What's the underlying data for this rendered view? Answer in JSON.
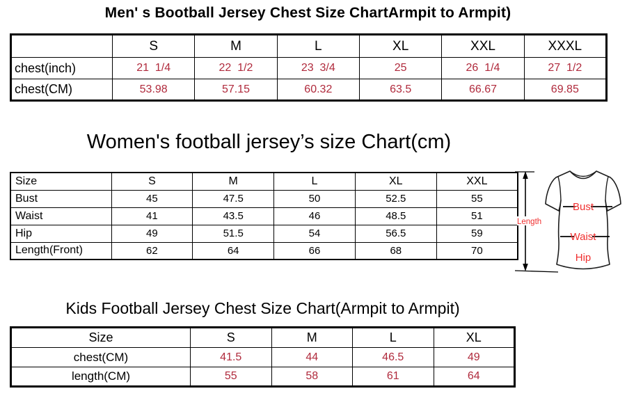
{
  "colors": {
    "value_red": "#b02a3c",
    "diagram_red": "#f02f2f",
    "line_black": "#000000"
  },
  "men_chart": {
    "title": "Men' s Bootball Jersey Chest Size ChartArmpit to Armpit)",
    "columns": [
      "",
      "S",
      "M",
      "L",
      "XL",
      "XXL",
      "XXXL"
    ],
    "rows": [
      {
        "label": "chest(inch)",
        "values": [
          "21  1/4",
          "22  1/2",
          "23  3/4",
          "25",
          "26  1/4",
          "27  1/2"
        ]
      },
      {
        "label": "chest(CM)",
        "values": [
          "53.98",
          "57.15",
          "60.32",
          "63.5",
          "66.67",
          "69.85"
        ]
      }
    ]
  },
  "women_chart": {
    "title": "Women's football jersey’s size Chart(cm)",
    "columns": [
      "Size",
      "S",
      "M",
      "L",
      "XL",
      "XXL"
    ],
    "rows": [
      {
        "label": "Bust",
        "values": [
          "45",
          "47.5",
          "50",
          "52.5",
          "55"
        ]
      },
      {
        "label": "Waist",
        "values": [
          "41",
          "43.5",
          "46",
          "48.5",
          "51"
        ]
      },
      {
        "label": "Hip",
        "values": [
          "49",
          "51.5",
          "54",
          "56.5",
          "59"
        ]
      },
      {
        "label": "Length(Front)",
        "values": [
          "62",
          "64",
          "66",
          "68",
          "70"
        ]
      }
    ]
  },
  "kids_chart": {
    "title": "Kids Football Jersey Chest Size Chart(Armpit to Armpit)",
    "columns": [
      "Size",
      "S",
      "M",
      "L",
      "XL"
    ],
    "rows": [
      {
        "label": "chest(CM)",
        "values": [
          "41.5",
          "44",
          "46.5",
          "49"
        ]
      },
      {
        "label": "length(CM)",
        "values": [
          "55",
          "58",
          "61",
          "64"
        ]
      }
    ]
  },
  "diagram": {
    "length_label": "Length",
    "bust_label": "Bust",
    "waist_label": "Waist",
    "hip_label": "Hip"
  }
}
